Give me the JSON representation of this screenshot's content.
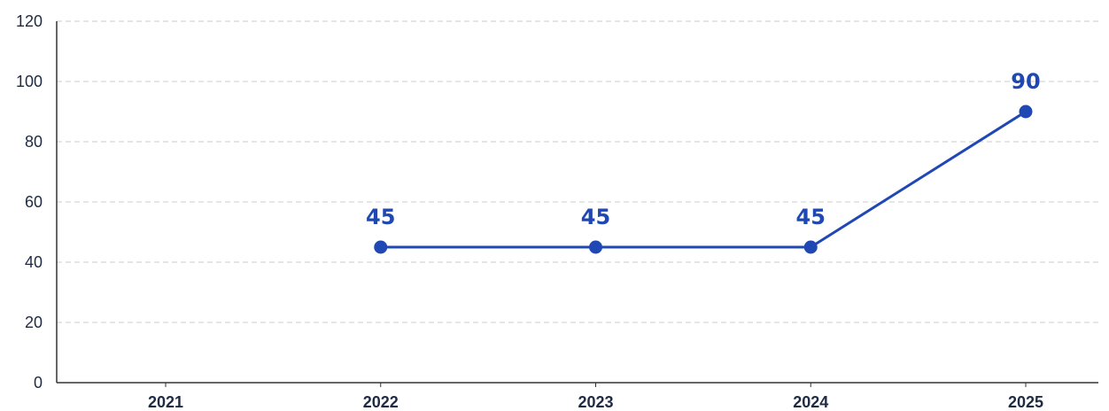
{
  "chart_data": {
    "type": "line",
    "categories": [
      "2021",
      "2022",
      "2023",
      "2024",
      "2025"
    ],
    "series": [
      {
        "values": [
          null,
          45,
          45,
          45,
          90
        ],
        "data_labels": [
          "",
          "45",
          "45",
          "45",
          "90"
        ]
      }
    ],
    "ylim": [
      0,
      120
    ],
    "y_ticks": [
      0,
      20,
      40,
      60,
      80,
      100,
      120
    ],
    "y_tick_labels": [
      "0",
      "20",
      "40",
      "60",
      "80",
      "100",
      "120"
    ],
    "grid": true,
    "legend": "none",
    "colors": {
      "line": "#1f48b4",
      "grid": "#cccccc",
      "axis": "#333333",
      "text": "#1f2a44"
    }
  }
}
